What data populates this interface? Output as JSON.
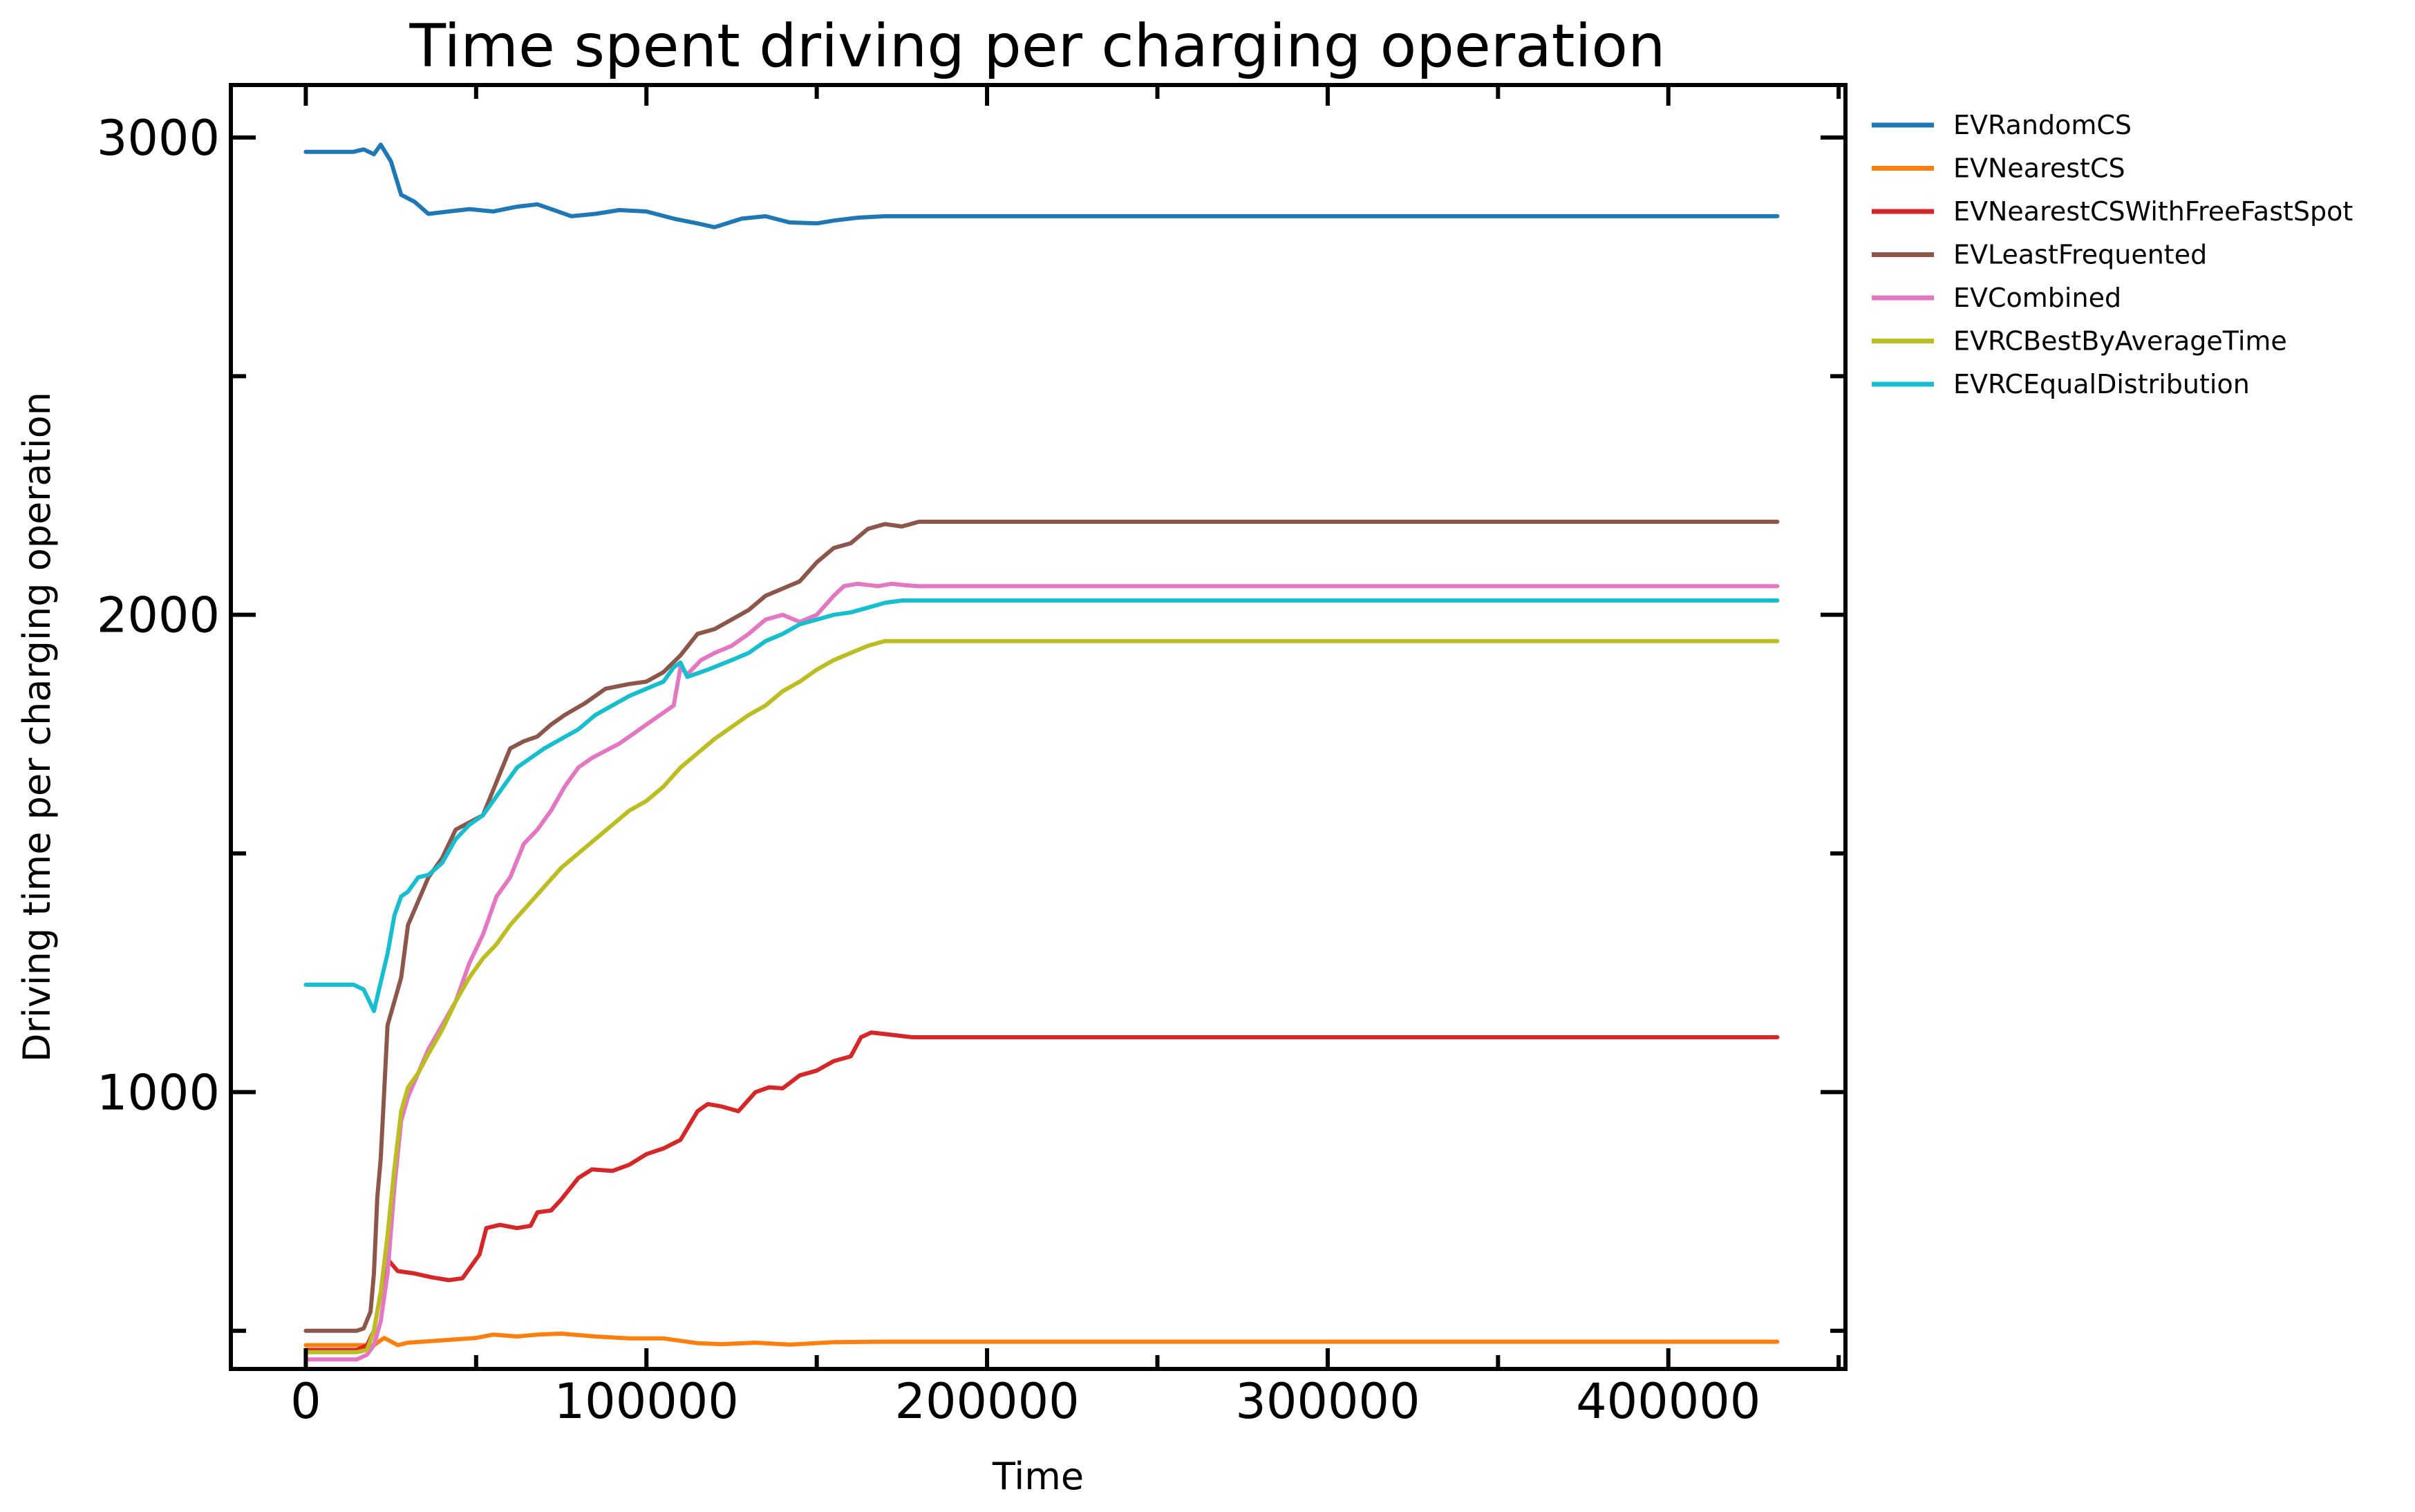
{
  "chart_data": {
    "type": "line",
    "title": "Time spent driving per charging operation",
    "xlabel": "Time",
    "ylabel": "Driving time per charging operation",
    "xlim": [
      -22000,
      452000
    ],
    "ylim": [
      420,
      3110
    ],
    "x_ticks_major": [
      0,
      100000,
      200000,
      300000,
      400000
    ],
    "x_ticks_minor": [
      50000,
      150000,
      250000,
      350000,
      450000
    ],
    "y_ticks_major": [
      1000,
      2000,
      3000
    ],
    "y_ticks_minor": [
      500,
      1500,
      2500
    ],
    "grid": false,
    "legend_position": "outside-right-top",
    "series": [
      {
        "name": "EVRandomCS",
        "color": "#1f77b4",
        "points": [
          [
            0,
            2970
          ],
          [
            14000,
            2970
          ],
          [
            17000,
            2975
          ],
          [
            20000,
            2965
          ],
          [
            22000,
            2985
          ],
          [
            25000,
            2950
          ],
          [
            28000,
            2880
          ],
          [
            32000,
            2865
          ],
          [
            36000,
            2840
          ],
          [
            42000,
            2845
          ],
          [
            48000,
            2850
          ],
          [
            55000,
            2845
          ],
          [
            62000,
            2855
          ],
          [
            68000,
            2860
          ],
          [
            72000,
            2850
          ],
          [
            78000,
            2835
          ],
          [
            85000,
            2840
          ],
          [
            92000,
            2848
          ],
          [
            100000,
            2845
          ],
          [
            108000,
            2830
          ],
          [
            115000,
            2820
          ],
          [
            120000,
            2812
          ],
          [
            128000,
            2830
          ],
          [
            135000,
            2835
          ],
          [
            142000,
            2822
          ],
          [
            150000,
            2820
          ],
          [
            155000,
            2826
          ],
          [
            162000,
            2832
          ],
          [
            170000,
            2835
          ],
          [
            180000,
            2835
          ],
          [
            432000,
            2835
          ]
        ]
      },
      {
        "name": "EVNearestCS",
        "color": "#ff7f0e",
        "points": [
          [
            0,
            470
          ],
          [
            20000,
            470
          ],
          [
            23000,
            485
          ],
          [
            27000,
            470
          ],
          [
            30000,
            475
          ],
          [
            40000,
            480
          ],
          [
            50000,
            485
          ],
          [
            55000,
            492
          ],
          [
            62000,
            488
          ],
          [
            68000,
            492
          ],
          [
            75000,
            494
          ],
          [
            85000,
            488
          ],
          [
            95000,
            484
          ],
          [
            105000,
            484
          ],
          [
            115000,
            474
          ],
          [
            122000,
            472
          ],
          [
            132000,
            475
          ],
          [
            142000,
            471
          ],
          [
            155000,
            476
          ],
          [
            170000,
            477
          ],
          [
            432000,
            477
          ]
        ]
      },
      {
        "name": "EVNearestCSWithFreeFastSpot",
        "color": "#d62728",
        "points": [
          [
            0,
            460
          ],
          [
            15000,
            460
          ],
          [
            18000,
            470
          ],
          [
            20000,
            500
          ],
          [
            22000,
            580
          ],
          [
            24000,
            650
          ],
          [
            27000,
            625
          ],
          [
            32000,
            620
          ],
          [
            37000,
            612
          ],
          [
            42000,
            606
          ],
          [
            46000,
            610
          ],
          [
            48000,
            630
          ],
          [
            51000,
            660
          ],
          [
            53000,
            715
          ],
          [
            57000,
            722
          ],
          [
            62000,
            715
          ],
          [
            66000,
            720
          ],
          [
            68000,
            748
          ],
          [
            72000,
            752
          ],
          [
            75000,
            775
          ],
          [
            80000,
            820
          ],
          [
            84000,
            838
          ],
          [
            90000,
            835
          ],
          [
            95000,
            848
          ],
          [
            100000,
            870
          ],
          [
            105000,
            882
          ],
          [
            110000,
            900
          ],
          [
            115000,
            960
          ],
          [
            118000,
            975
          ],
          [
            122000,
            970
          ],
          [
            127000,
            960
          ],
          [
            132000,
            1000
          ],
          [
            136000,
            1010
          ],
          [
            140000,
            1008
          ],
          [
            145000,
            1035
          ],
          [
            150000,
            1045
          ],
          [
            155000,
            1065
          ],
          [
            160000,
            1075
          ],
          [
            163000,
            1115
          ],
          [
            166000,
            1125
          ],
          [
            172000,
            1120
          ],
          [
            178000,
            1115
          ],
          [
            432000,
            1115
          ]
        ]
      },
      {
        "name": "EVLeastFrequented",
        "color": "#8c564b",
        "points": [
          [
            0,
            500
          ],
          [
            15000,
            500
          ],
          [
            17000,
            505
          ],
          [
            19000,
            540
          ],
          [
            20000,
            620
          ],
          [
            21000,
            780
          ],
          [
            22000,
            860
          ],
          [
            23000,
            1000
          ],
          [
            24000,
            1140
          ],
          [
            26000,
            1190
          ],
          [
            28000,
            1240
          ],
          [
            30000,
            1350
          ],
          [
            33000,
            1400
          ],
          [
            36000,
            1450
          ],
          [
            40000,
            1490
          ],
          [
            44000,
            1550
          ],
          [
            48000,
            1565
          ],
          [
            52000,
            1580
          ],
          [
            56000,
            1650
          ],
          [
            60000,
            1720
          ],
          [
            64000,
            1735
          ],
          [
            68000,
            1745
          ],
          [
            72000,
            1770
          ],
          [
            76000,
            1790
          ],
          [
            82000,
            1815
          ],
          [
            88000,
            1845
          ],
          [
            95000,
            1855
          ],
          [
            100000,
            1860
          ],
          [
            105000,
            1880
          ],
          [
            110000,
            1915
          ],
          [
            115000,
            1960
          ],
          [
            120000,
            1970
          ],
          [
            125000,
            1990
          ],
          [
            130000,
            2010
          ],
          [
            135000,
            2040
          ],
          [
            140000,
            2055
          ],
          [
            145000,
            2070
          ],
          [
            150000,
            2110
          ],
          [
            155000,
            2140
          ],
          [
            160000,
            2150
          ],
          [
            165000,
            2180
          ],
          [
            170000,
            2190
          ],
          [
            175000,
            2185
          ],
          [
            180000,
            2195
          ],
          [
            185000,
            2195
          ],
          [
            432000,
            2195
          ]
        ]
      },
      {
        "name": "EVCombined",
        "color": "#e377c2",
        "points": [
          [
            0,
            440
          ],
          [
            15000,
            440
          ],
          [
            18000,
            450
          ],
          [
            20000,
            470
          ],
          [
            22000,
            520
          ],
          [
            24000,
            620
          ],
          [
            26000,
            800
          ],
          [
            28000,
            940
          ],
          [
            30000,
            990
          ],
          [
            33000,
            1040
          ],
          [
            36000,
            1090
          ],
          [
            40000,
            1140
          ],
          [
            44000,
            1190
          ],
          [
            48000,
            1270
          ],
          [
            52000,
            1330
          ],
          [
            56000,
            1410
          ],
          [
            60000,
            1450
          ],
          [
            64000,
            1520
          ],
          [
            68000,
            1550
          ],
          [
            72000,
            1590
          ],
          [
            76000,
            1640
          ],
          [
            80000,
            1680
          ],
          [
            84000,
            1700
          ],
          [
            88000,
            1715
          ],
          [
            92000,
            1730
          ],
          [
            96000,
            1750
          ],
          [
            100000,
            1770
          ],
          [
            104000,
            1790
          ],
          [
            108000,
            1810
          ],
          [
            110000,
            1890
          ],
          [
            112000,
            1875
          ],
          [
            116000,
            1905
          ],
          [
            120000,
            1920
          ],
          [
            125000,
            1935
          ],
          [
            130000,
            1960
          ],
          [
            135000,
            1990
          ],
          [
            140000,
            2000
          ],
          [
            145000,
            1985
          ],
          [
            150000,
            2000
          ],
          [
            155000,
            2040
          ],
          [
            158000,
            2060
          ],
          [
            162000,
            2065
          ],
          [
            168000,
            2060
          ],
          [
            172000,
            2065
          ],
          [
            176000,
            2062
          ],
          [
            180000,
            2060
          ],
          [
            432000,
            2060
          ]
        ]
      },
      {
        "name": "EVRCBestByAverageTime",
        "color": "#bcbd22",
        "points": [
          [
            0,
            455
          ],
          [
            15000,
            455
          ],
          [
            18000,
            460
          ],
          [
            20000,
            500
          ],
          [
            22000,
            580
          ],
          [
            24000,
            700
          ],
          [
            26000,
            840
          ],
          [
            28000,
            960
          ],
          [
            30000,
            1010
          ],
          [
            33000,
            1040
          ],
          [
            36000,
            1080
          ],
          [
            40000,
            1130
          ],
          [
            44000,
            1190
          ],
          [
            48000,
            1240
          ],
          [
            52000,
            1280
          ],
          [
            56000,
            1310
          ],
          [
            60000,
            1350
          ],
          [
            65000,
            1390
          ],
          [
            70000,
            1430
          ],
          [
            75000,
            1470
          ],
          [
            80000,
            1500
          ],
          [
            85000,
            1530
          ],
          [
            90000,
            1560
          ],
          [
            95000,
            1590
          ],
          [
            100000,
            1610
          ],
          [
            105000,
            1640
          ],
          [
            110000,
            1680
          ],
          [
            115000,
            1710
          ],
          [
            120000,
            1740
          ],
          [
            125000,
            1765
          ],
          [
            130000,
            1790
          ],
          [
            135000,
            1810
          ],
          [
            140000,
            1840
          ],
          [
            145000,
            1860
          ],
          [
            150000,
            1885
          ],
          [
            155000,
            1905
          ],
          [
            160000,
            1920
          ],
          [
            165000,
            1935
          ],
          [
            170000,
            1945
          ],
          [
            175000,
            1945
          ],
          [
            432000,
            1945
          ]
        ]
      },
      {
        "name": "EVRCEqualDistribution",
        "color": "#17becf",
        "points": [
          [
            0,
            1225
          ],
          [
            14000,
            1225
          ],
          [
            17000,
            1215
          ],
          [
            19000,
            1185
          ],
          [
            20000,
            1170
          ],
          [
            22000,
            1230
          ],
          [
            24000,
            1290
          ],
          [
            26000,
            1370
          ],
          [
            28000,
            1410
          ],
          [
            30000,
            1420
          ],
          [
            33000,
            1450
          ],
          [
            36000,
            1455
          ],
          [
            40000,
            1480
          ],
          [
            44000,
            1530
          ],
          [
            48000,
            1560
          ],
          [
            52000,
            1580
          ],
          [
            55000,
            1610
          ],
          [
            58000,
            1640
          ],
          [
            62000,
            1680
          ],
          [
            66000,
            1700
          ],
          [
            70000,
            1720
          ],
          [
            75000,
            1740
          ],
          [
            80000,
            1760
          ],
          [
            85000,
            1790
          ],
          [
            90000,
            1810
          ],
          [
            95000,
            1830
          ],
          [
            100000,
            1845
          ],
          [
            105000,
            1860
          ],
          [
            108000,
            1890
          ],
          [
            110000,
            1900
          ],
          [
            112000,
            1870
          ],
          [
            118000,
            1885
          ],
          [
            125000,
            1905
          ],
          [
            130000,
            1920
          ],
          [
            135000,
            1945
          ],
          [
            140000,
            1960
          ],
          [
            145000,
            1980
          ],
          [
            150000,
            1990
          ],
          [
            155000,
            2000
          ],
          [
            160000,
            2005
          ],
          [
            165000,
            2015
          ],
          [
            170000,
            2025
          ],
          [
            175000,
            2030
          ],
          [
            432000,
            2030
          ]
        ]
      }
    ]
  }
}
